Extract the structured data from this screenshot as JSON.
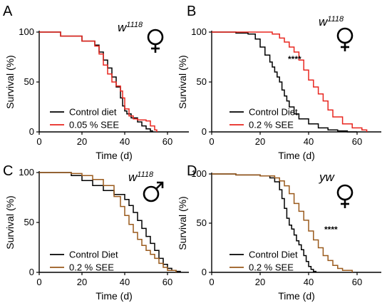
{
  "chart_data": [
    {
      "type": "line",
      "panel": "A",
      "genotype": "w",
      "genotype_sup": "1118",
      "sex": "female",
      "xlabel": "Time (d)",
      "ylabel": "Survival (%)",
      "xlim": [
        0,
        70
      ],
      "ylim": [
        0,
        100
      ],
      "xticks": [
        0,
        20,
        40,
        60
      ],
      "yticks": [
        0,
        50,
        100
      ],
      "significance": "",
      "series": [
        {
          "name": "Control diet",
          "color": "#000000",
          "x": [
            0,
            10,
            20,
            26,
            28,
            30,
            32,
            34,
            36,
            38,
            39,
            40,
            41,
            43,
            46,
            48,
            50,
            52,
            53
          ],
          "y": [
            100,
            96,
            91,
            87,
            80,
            72,
            64,
            55,
            45,
            34,
            26,
            21,
            18,
            14,
            10,
            6,
            3,
            1,
            0
          ]
        },
        {
          "name": "0.05 % SEE",
          "color": "#e8261f",
          "x": [
            0,
            10,
            20,
            26,
            28,
            30,
            32,
            34,
            36,
            38,
            39,
            40,
            42,
            44,
            46,
            50,
            52,
            54,
            55
          ],
          "y": [
            100,
            96,
            91,
            86,
            78,
            67,
            58,
            50,
            46,
            41,
            34,
            23,
            16,
            13,
            12,
            11,
            6,
            2,
            0
          ]
        }
      ]
    },
    {
      "type": "line",
      "panel": "B",
      "genotype": "w",
      "genotype_sup": "1118",
      "sex": "female",
      "xlabel": "Time (d)",
      "ylabel": "Survival (%)",
      "xlim": [
        0,
        70
      ],
      "ylim": [
        0,
        100
      ],
      "xticks": [
        0,
        20,
        40,
        60
      ],
      "yticks": [
        0,
        50,
        100
      ],
      "significance": "****",
      "series": [
        {
          "name": "Control Diet",
          "color": "#000000",
          "x": [
            0,
            10,
            15,
            18,
            20,
            22,
            24,
            25,
            26,
            27,
            28,
            29,
            30,
            31,
            32,
            34,
            36,
            40,
            44,
            48,
            52,
            56,
            60
          ],
          "y": [
            100,
            99,
            98,
            93,
            85,
            77,
            70,
            65,
            60,
            55,
            50,
            42,
            36,
            31,
            25,
            18,
            13,
            8,
            4,
            2,
            1,
            0,
            0
          ]
        },
        {
          "name": "0.2 % SEE",
          "color": "#e8261f",
          "x": [
            0,
            10,
            20,
            25,
            28,
            30,
            32,
            34,
            36,
            38,
            40,
            42,
            44,
            46,
            48,
            50,
            54,
            58,
            62,
            64
          ],
          "y": [
            100,
            100,
            100,
            98,
            94,
            90,
            85,
            80,
            72,
            62,
            52,
            45,
            38,
            31,
            22,
            15,
            8,
            4,
            2,
            0
          ]
        }
      ]
    },
    {
      "type": "line",
      "panel": "C",
      "genotype": "w",
      "genotype_sup": "1118",
      "sex": "male",
      "xlabel": "Time (d)",
      "ylabel": "Survival (%)",
      "xlim": [
        0,
        70
      ],
      "ylim": [
        0,
        100
      ],
      "xticks": [
        0,
        20,
        40,
        60
      ],
      "yticks": [
        0,
        50,
        100
      ],
      "significance": "",
      "series": [
        {
          "name": "Control  Diet",
          "color": "#000000",
          "x": [
            0,
            10,
            15,
            20,
            25,
            30,
            35,
            40,
            42,
            44,
            46,
            48,
            50,
            52,
            54,
            56,
            58,
            60,
            62,
            64,
            66
          ],
          "y": [
            100,
            100,
            97,
            92,
            87,
            82,
            78,
            73,
            67,
            60,
            52,
            44,
            36,
            29,
            22,
            14,
            8,
            4,
            2,
            1,
            0
          ]
        },
        {
          "name": "0.2 % SEE",
          "color": "#9a5a1c",
          "x": [
            0,
            10,
            15,
            20,
            25,
            30,
            35,
            38,
            40,
            42,
            44,
            46,
            48,
            50,
            52,
            54,
            56,
            58,
            60,
            64
          ],
          "y": [
            100,
            100,
            99,
            97,
            93,
            87,
            76,
            66,
            57,
            48,
            40,
            33,
            27,
            22,
            18,
            14,
            9,
            5,
            2,
            0
          ]
        }
      ]
    },
    {
      "type": "line",
      "panel": "D",
      "genotype": "yw",
      "genotype_sup": "",
      "sex": "female",
      "xlabel": "Time (d)",
      "ylabel": "Survival (%)",
      "xlim": [
        0,
        70
      ],
      "ylim": [
        0,
        100
      ],
      "xticks": [
        0,
        20,
        40,
        60
      ],
      "yticks": [
        0,
        50,
        100
      ],
      "significance": "****",
      "series": [
        {
          "name": "Control  Diet",
          "color": "#000000",
          "x": [
            0,
            10,
            20,
            24,
            26,
            28,
            29,
            30,
            31,
            32,
            33,
            34,
            35,
            36,
            37,
            38,
            39,
            40,
            41,
            42,
            43
          ],
          "y": [
            100,
            99,
            98,
            96,
            92,
            84,
            75,
            65,
            55,
            48,
            44,
            38,
            32,
            28,
            23,
            17,
            11,
            6,
            3,
            1,
            0
          ]
        },
        {
          "name": "0.2 % SEE",
          "color": "#9a5a1c",
          "x": [
            0,
            10,
            20,
            26,
            28,
            30,
            32,
            34,
            36,
            38,
            40,
            42,
            44,
            46,
            48,
            50,
            52,
            54,
            58
          ],
          "y": [
            100,
            99,
            98,
            96,
            93,
            88,
            80,
            70,
            62,
            53,
            42,
            33,
            25,
            17,
            12,
            7,
            4,
            2,
            0
          ]
        }
      ]
    }
  ]
}
